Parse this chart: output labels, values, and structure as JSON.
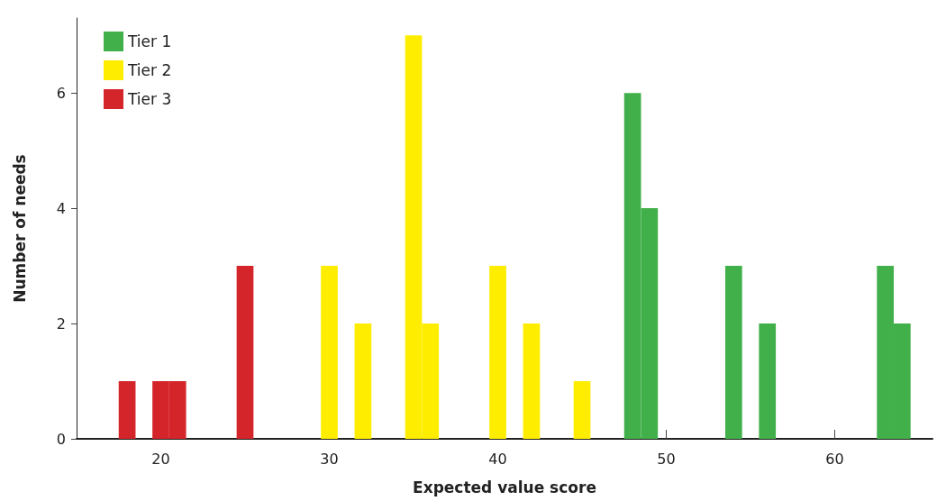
{
  "chart_data": {
    "type": "bar",
    "xlabel": "Expected value score",
    "ylabel": "Number of needs",
    "xlim": [
      15,
      65.8
    ],
    "xticks": [
      20,
      30,
      40,
      50,
      60
    ],
    "ylim": [
      0,
      7.3
    ],
    "yticks": [
      0,
      2,
      4,
      6
    ],
    "grid": false,
    "legend": "top left",
    "series": [
      {
        "name": "Tier 1",
        "color": "#41b04a",
        "x": [
          48,
          49,
          54,
          56,
          63,
          64
        ],
        "values": [
          6,
          4,
          3,
          2,
          3,
          2
        ]
      },
      {
        "name": "Tier 2",
        "color": "#ffed00",
        "x": [
          30,
          32,
          35,
          36,
          40,
          42,
          45
        ],
        "values": [
          3,
          2,
          7,
          2,
          3,
          2,
          1
        ]
      },
      {
        "name": "Tier 3",
        "color": "#d4252a",
        "x": [
          18,
          20,
          21,
          25
        ],
        "values": [
          1,
          1,
          1,
          3
        ]
      }
    ]
  }
}
